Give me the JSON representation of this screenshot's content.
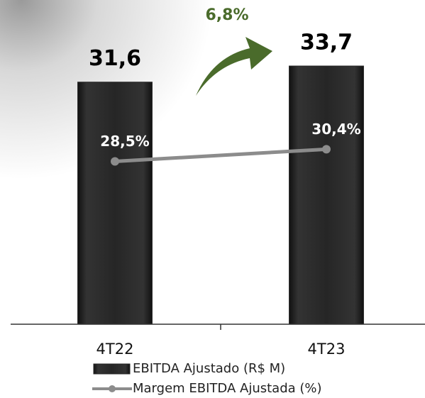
{
  "chart_data": {
    "type": "combo",
    "categories": [
      "4T22",
      "4T23"
    ],
    "series": [
      {
        "name": "EBITDA Ajustado (R$ M)",
        "type": "bar",
        "color": "#262626",
        "values": [
          31.6,
          33.7
        ],
        "value_labels": [
          "31,6",
          "33,7"
        ]
      },
      {
        "name": "Margem EBITDA Ajustada (%)",
        "type": "line",
        "axis": "y2",
        "color": "#8c8c8c",
        "values": [
          28.5,
          30.4
        ],
        "value_labels": [
          "28,5%",
          "30,4%"
        ]
      }
    ],
    "ylim": [
      0,
      37.5
    ],
    "y2lim": [
      3,
      48
    ],
    "annotation": "6,8%",
    "annotation_color": "#4a6b2b",
    "grid": false,
    "legend": "bottom"
  }
}
